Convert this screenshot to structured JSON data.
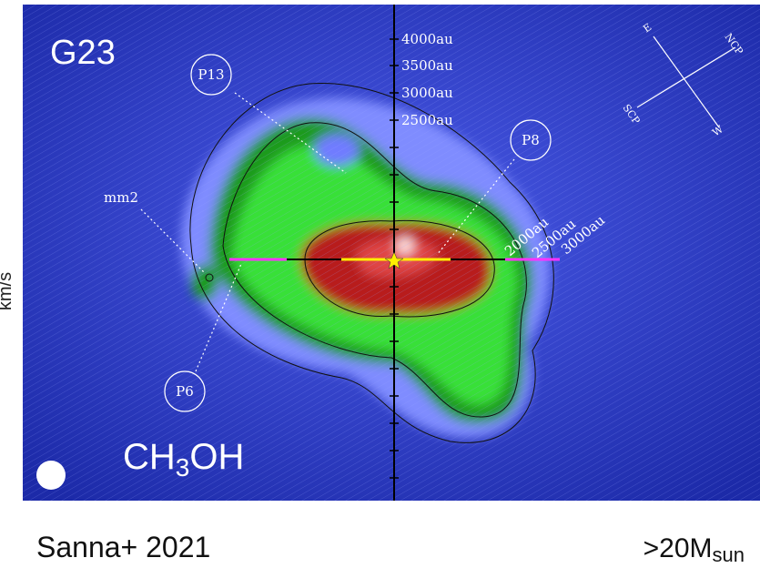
{
  "panel": {
    "label": "G23",
    "molecule": {
      "main": "CH",
      "sub": "3",
      "rest": "OH"
    },
    "side_label": "km/s",
    "annotations": [
      "P13",
      "P8",
      "P6",
      "mm2"
    ],
    "vertical_scale": [
      "4000au",
      "3500au",
      "3000au",
      "2500au"
    ],
    "diagonal_scale": [
      "2000au",
      "2500au",
      "3000au"
    ],
    "compass": {
      "east": "E",
      "north": "NCP",
      "south": "SCP",
      "west": "W"
    }
  },
  "footer": {
    "reference": "Sanna+ 2021",
    "mass": {
      "main": ">20M",
      "sub": "sun"
    }
  }
}
